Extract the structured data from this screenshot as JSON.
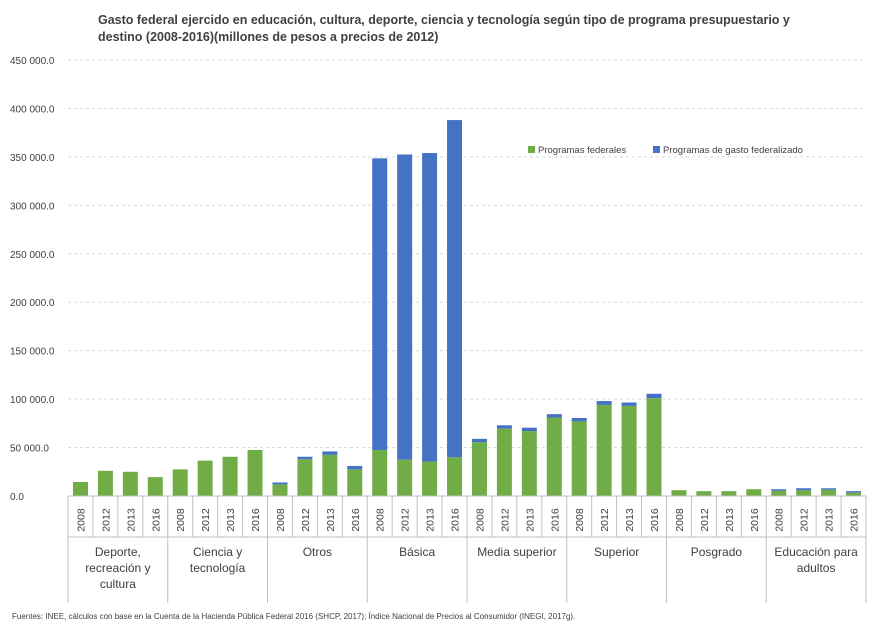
{
  "chart_data": {
    "type": "bar",
    "stacked": true,
    "title_lines": [
      "Gasto federal ejercido en educación, cultura, deporte, ciencia y tecnología según tipo de programa presupuestario y",
      "destino (2008-2016)(millones de pesos a precios de 2012)"
    ],
    "source": "Fuentes: INEE, cálculos con base en la Cuenta de la Hacienda Pública Federal 2016 (SHCP, 2017); Índice Nacional de Precios al Consumidor (INEGI, 2017g).",
    "ylim": [
      0,
      450000
    ],
    "yticks": [
      "0.0",
      "50 000.0",
      "100 000.0",
      "150 000.0",
      "200 000.0",
      "250 000.0",
      "300 000.0",
      "350 000.0",
      "400 000.0",
      "450 000.0"
    ],
    "grid": true,
    "legend_position": "top-right",
    "groups": [
      {
        "label_lines": [
          "Deporte,",
          "recreación y",
          "cultura"
        ],
        "years": [
          "2008",
          "2012",
          "2013",
          "2016"
        ]
      },
      {
        "label_lines": [
          "Ciencia y",
          "tecnología"
        ],
        "years": [
          "2008",
          "2012",
          "2013",
          "2016"
        ]
      },
      {
        "label_lines": [
          "Otros"
        ],
        "years": [
          "2008",
          "2012",
          "2013",
          "2016"
        ]
      },
      {
        "label_lines": [
          "Básica"
        ],
        "years": [
          "2008",
          "2012",
          "2013",
          "2016"
        ]
      },
      {
        "label_lines": [
          "Media superior"
        ],
        "years": [
          "2008",
          "2012",
          "2013",
          "2016"
        ]
      },
      {
        "label_lines": [
          "Superior"
        ],
        "years": [
          "2008",
          "2012",
          "2013",
          "2016"
        ]
      },
      {
        "label_lines": [
          "Posgrado"
        ],
        "years": [
          "2008",
          "2012",
          "2013",
          "2016"
        ]
      },
      {
        "label_lines": [
          "Educación para",
          "adultos"
        ],
        "years": [
          "2008",
          "2012",
          "2013",
          "2016"
        ]
      }
    ],
    "series": [
      {
        "name": "Programas federales",
        "color": "#70ad47",
        "values": [
          14500,
          26000,
          25000,
          19500,
          27500,
          36500,
          40500,
          47500,
          12000,
          38000,
          42500,
          27500,
          47500,
          37500,
          35500,
          40000,
          55500,
          69500,
          67000,
          81000,
          77000,
          94000,
          93000,
          101000,
          6000,
          5000,
          5000,
          7000,
          5500,
          6000,
          6500,
          3500
        ]
      },
      {
        "name": "Programas de gasto federalizado",
        "color": "#4472c4",
        "values": [
          0,
          0,
          0,
          0,
          0,
          0,
          0,
          0,
          2000,
          2500,
          3500,
          3500,
          301000,
          315000,
          318500,
          348000,
          3500,
          3500,
          3500,
          3500,
          3500,
          4000,
          3500,
          4500,
          0,
          0,
          0,
          0,
          1500,
          2000,
          1500,
          1500
        ]
      }
    ]
  }
}
